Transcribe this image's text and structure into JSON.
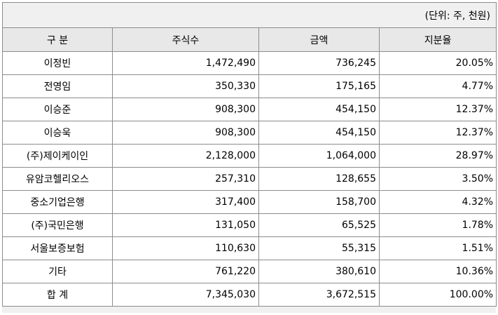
{
  "unit_note": "(단위: 주, 천원)",
  "columns": [
    "구 분",
    "주식수",
    "금액",
    "지분율"
  ],
  "rows": [
    {
      "name": "이정빈",
      "shares": "1,472,490",
      "amount": "736,245",
      "ratio": "20.05%"
    },
    {
      "name": "전영임",
      "shares": "350,330",
      "amount": "175,165",
      "ratio": "4.77%"
    },
    {
      "name": "이승준",
      "shares": "908,300",
      "amount": "454,150",
      "ratio": "12.37%"
    },
    {
      "name": "이승욱",
      "shares": "908,300",
      "amount": "454,150",
      "ratio": "12.37%"
    },
    {
      "name": "(주)제이케이인",
      "shares": "2,128,000",
      "amount": "1,064,000",
      "ratio": "28.97%"
    },
    {
      "name": "유암코헬리오스",
      "shares": "257,310",
      "amount": "128,655",
      "ratio": "3.50%"
    },
    {
      "name": "중소기업은행",
      "shares": "317,400",
      "amount": "158,700",
      "ratio": "4.32%"
    },
    {
      "name": "(주)국민은행",
      "shares": "131,050",
      "amount": "65,525",
      "ratio": "1.78%"
    },
    {
      "name": "서울보증보험",
      "shares": "110,630",
      "amount": "55,315",
      "ratio": "1.51%"
    },
    {
      "name": "기타",
      "shares": "761,220",
      "amount": "380,610",
      "ratio": "10.36%"
    },
    {
      "name": "합 계",
      "shares": "7,345,030",
      "amount": "3,672,515",
      "ratio": "100.00%"
    }
  ]
}
